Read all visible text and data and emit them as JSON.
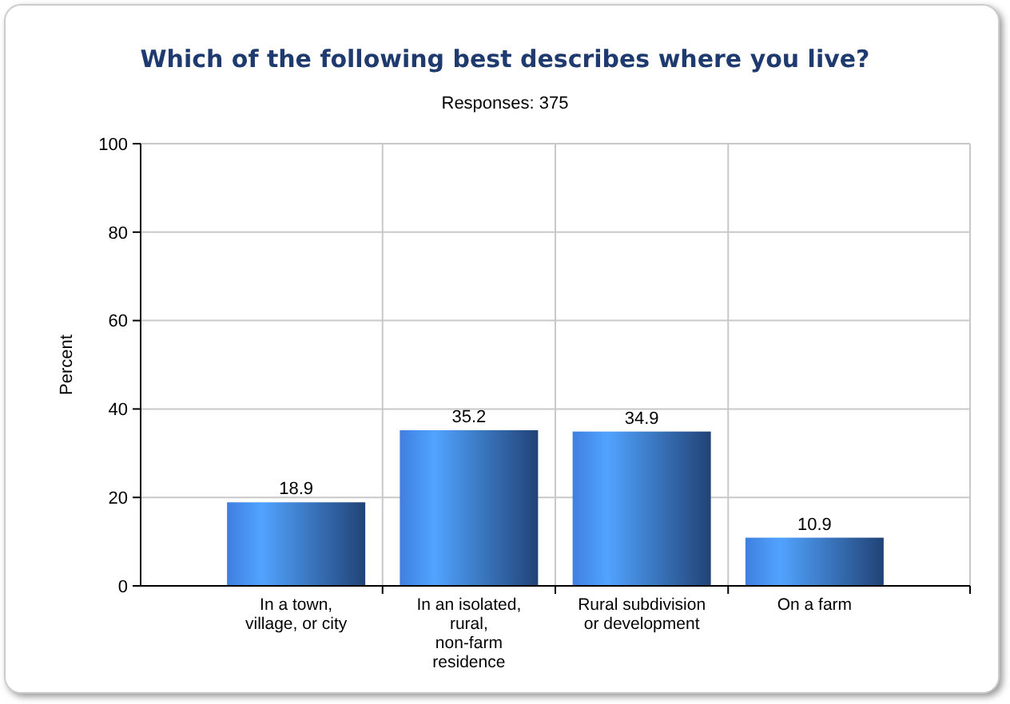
{
  "chart_data": {
    "type": "bar",
    "title": "Which of the following best describes where you live?",
    "subtitle": "Responses: 375",
    "ylabel": "Percent",
    "categories": [
      "In a town,\nvillage, or city",
      "In an isolated,\nrural,\nnon-farm\nresidence",
      "Rural subdivision\nor development",
      "On a farm"
    ],
    "values": [
      18.9,
      35.2,
      34.9,
      10.9
    ],
    "color": "#3f7fe0",
    "ylim": [
      0,
      100
    ],
    "yticks": [
      0,
      20,
      40,
      60,
      80,
      100
    ],
    "grid": true,
    "data_labels": true
  }
}
